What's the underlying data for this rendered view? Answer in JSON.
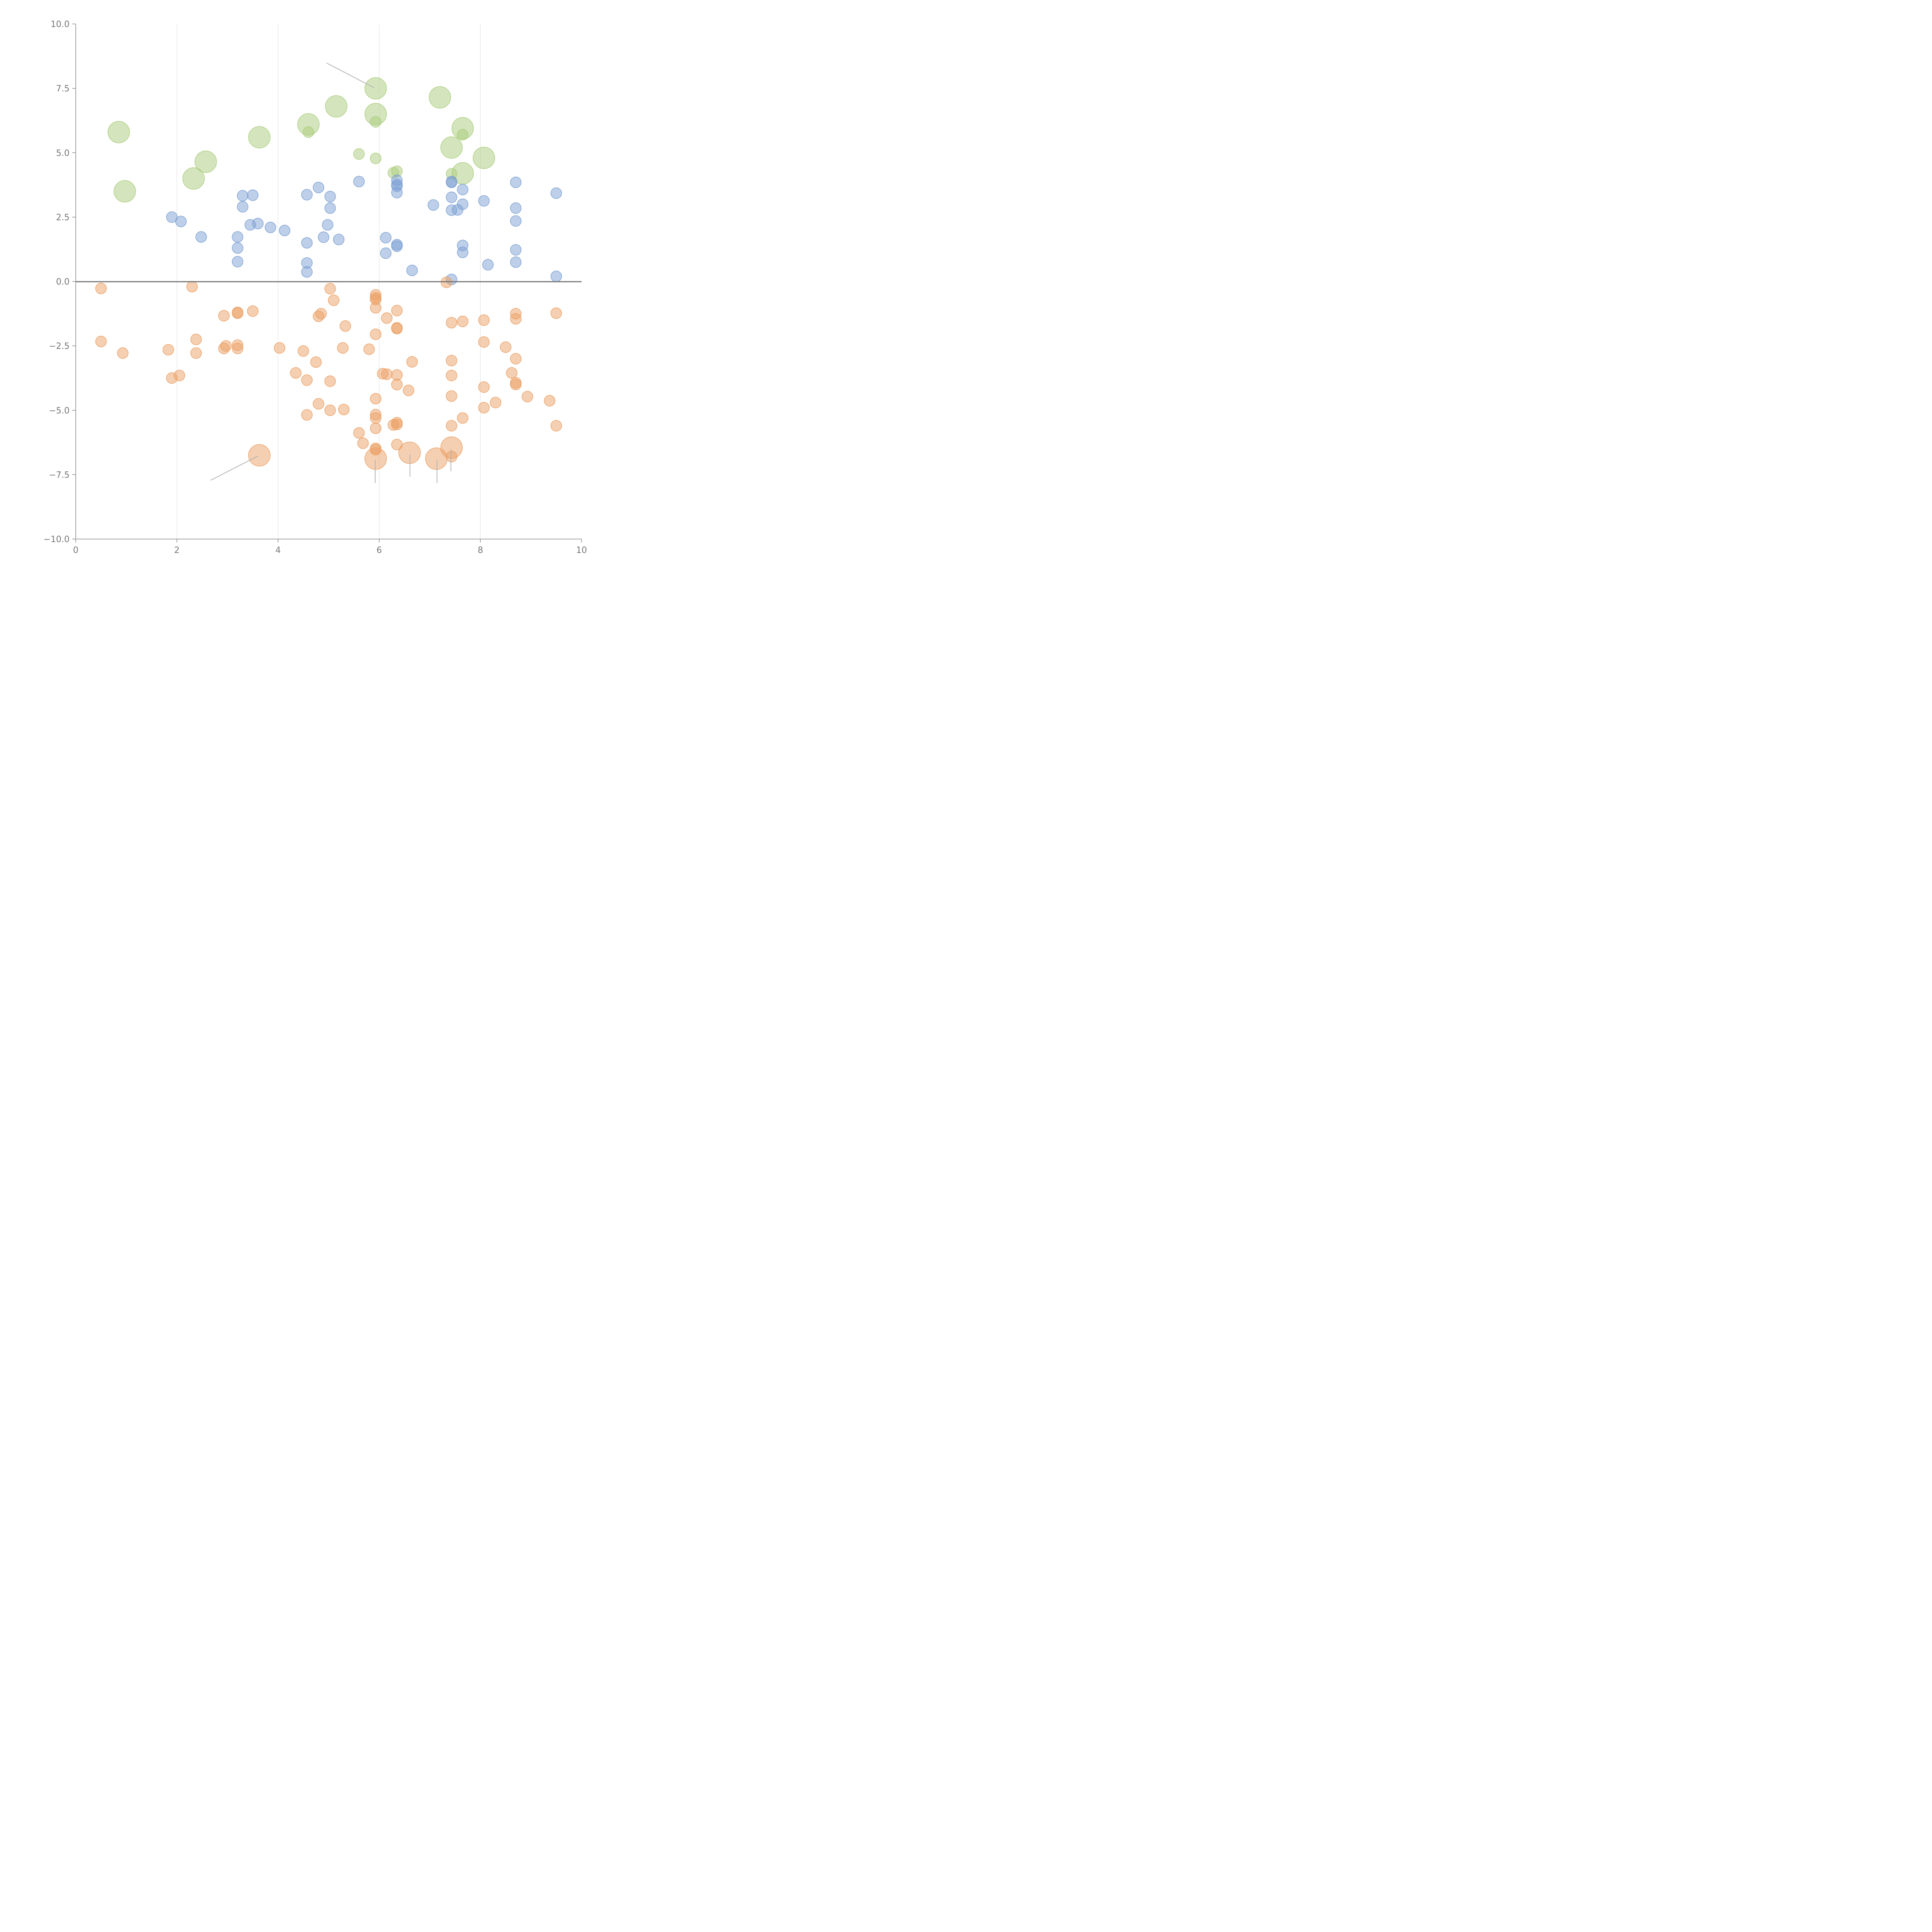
{
  "chart_data": {
    "type": "scatter",
    "xlim": [
      0,
      10
    ],
    "ylim": [
      -10,
      10
    ],
    "x_ticks": [
      "0",
      "2",
      "4",
      "6",
      "8",
      "10"
    ],
    "y_ticks": [
      "10.0",
      "7.5",
      "5.0",
      "2.5",
      "0.0",
      "−2.5",
      "−5.0",
      "−7.5",
      "−10.0"
    ],
    "x_tick_values": [
      0,
      2,
      4,
      6,
      8,
      10
    ],
    "y_tick_values": [
      10,
      7.5,
      5,
      2.5,
      0,
      -2.5,
      -5,
      -7.5,
      -10
    ],
    "grid": "vertical",
    "zero_line": true,
    "colors": {
      "green": "#a9cc7b",
      "blue": "#7b9fd3",
      "orange": "#eb9f63"
    },
    "series": [
      {
        "color": "green",
        "points": [
          [
            0.85,
            5.8,
            3
          ],
          [
            0.97,
            3.5,
            3
          ],
          [
            2.33,
            4.0,
            3
          ],
          [
            2.57,
            4.65,
            3
          ],
          [
            3.63,
            5.6,
            3
          ],
          [
            4.6,
            6.1,
            3
          ],
          [
            4.6,
            5.8,
            1
          ],
          [
            5.15,
            6.8,
            3
          ],
          [
            5.6,
            4.95,
            1
          ],
          [
            5.93,
            7.5,
            3
          ],
          [
            5.93,
            6.5,
            3
          ],
          [
            5.93,
            6.2,
            1
          ],
          [
            5.93,
            4.78,
            1
          ],
          [
            6.28,
            4.22,
            1
          ],
          [
            6.35,
            4.28,
            1
          ],
          [
            7.2,
            7.15,
            3
          ],
          [
            7.43,
            5.2,
            3
          ],
          [
            7.43,
            4.18,
            1
          ],
          [
            7.65,
            5.95,
            3
          ],
          [
            7.65,
            5.7,
            1
          ],
          [
            7.65,
            4.2,
            3
          ],
          [
            8.07,
            4.8,
            3
          ]
        ]
      },
      {
        "color": "blue",
        "points": [
          [
            1.9,
            2.5,
            1
          ],
          [
            2.08,
            2.33,
            1
          ],
          [
            2.48,
            1.73,
            1
          ],
          [
            3.2,
            1.73,
            1
          ],
          [
            3.2,
            1.3,
            1
          ],
          [
            3.2,
            0.77,
            1
          ],
          [
            3.3,
            3.33,
            1
          ],
          [
            3.3,
            2.9,
            1
          ],
          [
            3.45,
            2.2,
            1
          ],
          [
            3.5,
            3.35,
            1
          ],
          [
            3.6,
            2.25,
            1
          ],
          [
            3.85,
            2.1,
            1
          ],
          [
            4.13,
            1.98,
            1
          ],
          [
            4.57,
            3.37,
            1
          ],
          [
            4.57,
            1.5,
            1
          ],
          [
            4.57,
            0.72,
            1
          ],
          [
            4.57,
            0.37,
            1
          ],
          [
            4.8,
            3.65,
            1
          ],
          [
            4.9,
            1.72,
            1
          ],
          [
            4.98,
            2.2,
            1
          ],
          [
            5.03,
            3.3,
            1
          ],
          [
            5.03,
            2.85,
            1
          ],
          [
            5.2,
            1.63,
            1
          ],
          [
            5.6,
            3.88,
            1
          ],
          [
            6.13,
            1.7,
            1
          ],
          [
            6.13,
            1.1,
            1
          ],
          [
            6.35,
            3.93,
            1
          ],
          [
            6.35,
            3.77,
            1
          ],
          [
            6.35,
            3.7,
            1
          ],
          [
            6.35,
            3.45,
            1
          ],
          [
            6.35,
            1.43,
            1
          ],
          [
            6.35,
            1.37,
            1
          ],
          [
            6.65,
            0.43,
            1
          ],
          [
            7.07,
            2.97,
            1
          ],
          [
            7.43,
            3.88,
            1
          ],
          [
            7.43,
            3.85,
            1
          ],
          [
            7.43,
            3.27,
            1
          ],
          [
            7.43,
            2.77,
            1
          ],
          [
            7.43,
            0.08,
            1
          ],
          [
            7.55,
            2.78,
            1
          ],
          [
            7.65,
            3.57,
            1
          ],
          [
            7.65,
            3.0,
            1
          ],
          [
            7.65,
            1.4,
            1
          ],
          [
            7.65,
            1.13,
            1
          ],
          [
            8.07,
            3.13,
            1
          ],
          [
            8.15,
            0.65,
            1
          ],
          [
            8.7,
            3.85,
            1
          ],
          [
            8.7,
            2.85,
            1
          ],
          [
            8.7,
            2.35,
            1
          ],
          [
            8.7,
            1.23,
            1
          ],
          [
            8.7,
            0.75,
            1
          ],
          [
            9.5,
            3.43,
            1
          ],
          [
            9.5,
            0.2,
            1
          ]
        ]
      },
      {
        "color": "orange",
        "points": [
          [
            0.5,
            -0.27,
            1
          ],
          [
            0.5,
            -2.33,
            1
          ],
          [
            0.93,
            -2.78,
            1
          ],
          [
            1.83,
            -2.65,
            1
          ],
          [
            1.9,
            -3.75,
            1
          ],
          [
            2.05,
            -3.65,
            1
          ],
          [
            2.3,
            -0.2,
            1
          ],
          [
            2.38,
            -2.25,
            1
          ],
          [
            2.38,
            -2.78,
            1
          ],
          [
            2.93,
            -1.33,
            1
          ],
          [
            2.93,
            -2.6,
            1
          ],
          [
            2.97,
            -2.5,
            1
          ],
          [
            3.2,
            -1.2,
            1
          ],
          [
            3.2,
            -1.23,
            1
          ],
          [
            3.2,
            -2.47,
            1
          ],
          [
            3.2,
            -2.6,
            1
          ],
          [
            3.5,
            -1.15,
            1
          ],
          [
            3.63,
            -6.75,
            3
          ],
          [
            4.03,
            -2.58,
            1
          ],
          [
            4.35,
            -3.55,
            1
          ],
          [
            4.5,
            -2.7,
            1
          ],
          [
            4.57,
            -3.83,
            1
          ],
          [
            4.57,
            -5.18,
            1
          ],
          [
            4.75,
            -3.13,
            1
          ],
          [
            4.8,
            -1.35,
            1
          ],
          [
            4.8,
            -4.75,
            1
          ],
          [
            4.85,
            -1.25,
            1
          ],
          [
            5.03,
            -0.28,
            1
          ],
          [
            5.03,
            -3.87,
            1
          ],
          [
            5.03,
            -5.0,
            1
          ],
          [
            5.1,
            -0.73,
            1
          ],
          [
            5.28,
            -2.58,
            1
          ],
          [
            5.3,
            -4.97,
            1
          ],
          [
            5.33,
            -1.73,
            1
          ],
          [
            5.6,
            -5.88,
            1
          ],
          [
            5.68,
            -6.28,
            1
          ],
          [
            5.8,
            -2.63,
            1
          ],
          [
            5.93,
            -0.52,
            1
          ],
          [
            5.93,
            -0.63,
            1
          ],
          [
            5.93,
            -0.7,
            1
          ],
          [
            5.93,
            -1.02,
            1
          ],
          [
            5.93,
            -2.05,
            1
          ],
          [
            5.93,
            -4.55,
            1
          ],
          [
            5.93,
            -5.17,
            1
          ],
          [
            5.93,
            -5.3,
            1
          ],
          [
            5.93,
            -5.7,
            1
          ],
          [
            5.93,
            -6.48,
            1
          ],
          [
            5.93,
            -6.53,
            1
          ],
          [
            5.93,
            -6.88,
            3
          ],
          [
            6.07,
            -3.58,
            1
          ],
          [
            6.15,
            -1.42,
            1
          ],
          [
            6.15,
            -3.6,
            1
          ],
          [
            6.28,
            -5.57,
            1
          ],
          [
            6.35,
            -1.13,
            1
          ],
          [
            6.35,
            -1.8,
            1
          ],
          [
            6.35,
            -1.83,
            1
          ],
          [
            6.35,
            -3.63,
            1
          ],
          [
            6.35,
            -4.0,
            1
          ],
          [
            6.35,
            -5.48,
            1
          ],
          [
            6.35,
            -5.55,
            1
          ],
          [
            6.35,
            -6.33,
            1
          ],
          [
            6.58,
            -4.23,
            1
          ],
          [
            6.6,
            -6.65,
            3
          ],
          [
            6.65,
            -3.12,
            1
          ],
          [
            7.13,
            -6.88,
            3
          ],
          [
            7.33,
            -0.03,
            1
          ],
          [
            7.43,
            -1.6,
            1
          ],
          [
            7.43,
            -3.07,
            1
          ],
          [
            7.43,
            -3.65,
            1
          ],
          [
            7.43,
            -4.45,
            1
          ],
          [
            7.43,
            -5.6,
            1
          ],
          [
            7.43,
            -6.45,
            3
          ],
          [
            7.43,
            -6.8,
            1
          ],
          [
            7.65,
            -1.55,
            1
          ],
          [
            7.65,
            -5.3,
            1
          ],
          [
            8.07,
            -1.5,
            1
          ],
          [
            8.07,
            -2.35,
            1
          ],
          [
            8.07,
            -4.1,
            1
          ],
          [
            8.07,
            -4.9,
            1
          ],
          [
            8.3,
            -4.7,
            1
          ],
          [
            8.5,
            -2.55,
            1
          ],
          [
            8.62,
            -3.55,
            1
          ],
          [
            8.7,
            -1.25,
            1
          ],
          [
            8.7,
            -1.45,
            1
          ],
          [
            8.7,
            -3.0,
            1
          ],
          [
            8.7,
            -3.93,
            1
          ],
          [
            8.7,
            -4.0,
            1
          ],
          [
            8.93,
            -4.47,
            1
          ],
          [
            9.37,
            -4.63,
            1
          ],
          [
            9.5,
            -1.23,
            1
          ],
          [
            9.5,
            -5.6,
            1
          ]
        ]
      }
    ]
  }
}
